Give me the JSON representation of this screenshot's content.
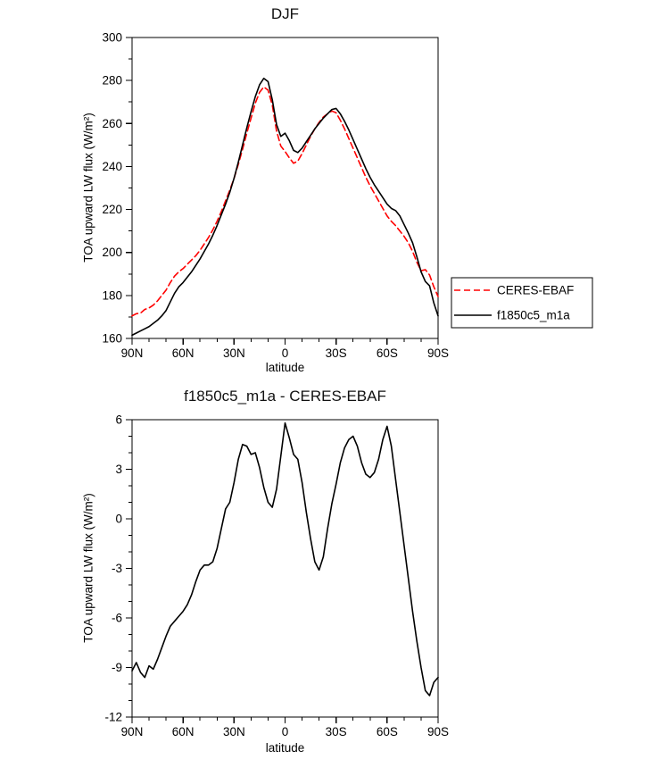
{
  "page": {
    "background": "#ffffff"
  },
  "colors": {
    "obs_line": "#ff0000",
    "model_line": "#000000",
    "axis": "#000000"
  },
  "chart_data": [
    {
      "type": "line",
      "title": "DJF",
      "xlabel": "latitude",
      "ylabel": "TOA upward LW flux (W/m²)",
      "xlim": [
        90,
        -90
      ],
      "ylim": [
        160,
        300
      ],
      "yticks": [
        160,
        180,
        200,
        220,
        240,
        260,
        280,
        300
      ],
      "ytick_minor_step": 10,
      "xticks": [
        90,
        60,
        30,
        0,
        -30,
        -60,
        -90
      ],
      "xtick_labels": [
        "90N",
        "60N",
        "30N",
        "0",
        "30S",
        "60S",
        "90S"
      ],
      "xtick_minor_step": 10,
      "grid": false,
      "legend": {
        "position": "outside-right",
        "border": true,
        "entries": [
          "CERES-EBAF",
          "f1850c5_m1a"
        ]
      },
      "x": [
        90,
        87.5,
        85,
        82.5,
        80,
        77.5,
        75,
        72.5,
        70,
        67.5,
        65,
        62.5,
        60,
        57.5,
        55,
        52.5,
        50,
        47.5,
        45,
        42.5,
        40,
        37.5,
        35,
        32.5,
        30,
        27.5,
        25,
        22.5,
        20,
        17.5,
        15,
        12.5,
        10,
        7.5,
        5,
        2.5,
        0,
        -2.5,
        -5,
        -7.5,
        -10,
        -12.5,
        -15,
        -17.5,
        -20,
        -22.5,
        -25,
        -27.5,
        -30,
        -32.5,
        -35,
        -37.5,
        -40,
        -42.5,
        -45,
        -47.5,
        -50,
        -52.5,
        -55,
        -57.5,
        -60,
        -62.5,
        -65,
        -67.5,
        -70,
        -72.5,
        -75,
        -77.5,
        -80,
        -82.5,
        -85,
        -87.5,
        -90
      ],
      "series": [
        {
          "name": "CERES-EBAF",
          "color": "#ff0000",
          "dash": "7,4",
          "width": 1.6,
          "values": [
            170.5,
            171.5,
            171.8,
            173.5,
            174.2,
            175.5,
            177.5,
            180,
            182.5,
            186,
            189,
            191,
            192.5,
            194.5,
            196.5,
            198.5,
            201,
            204,
            207,
            210.5,
            214.5,
            219,
            224,
            229,
            234.5,
            241,
            248,
            255.5,
            262.5,
            269.5,
            274.5,
            277,
            275.5,
            268.5,
            256.5,
            249.5,
            247,
            244,
            241.5,
            242.5,
            246,
            250,
            254,
            257.5,
            260.5,
            263,
            264.5,
            265.8,
            265,
            261.5,
            257.5,
            253,
            248.5,
            244,
            239.5,
            235,
            231,
            227.5,
            224,
            220.5,
            217,
            214.5,
            212.5,
            210,
            207.5,
            204.5,
            200.5,
            195.5,
            191.5,
            192,
            189.5,
            184,
            179.5
          ]
        },
        {
          "name": "f1850c5_m1a",
          "color": "#000000",
          "dash": "",
          "width": 1.6,
          "values": [
            161.5,
            162.5,
            163.5,
            164.5,
            165.5,
            167,
            168.5,
            170.5,
            173,
            177,
            181,
            184,
            186,
            188.5,
            191,
            194,
            197,
            200.5,
            204,
            208,
            212.5,
            217.5,
            222.5,
            228,
            234.5,
            242,
            250,
            258,
            265.5,
            272.5,
            278,
            281,
            279.5,
            271,
            259.5,
            254,
            255.5,
            252,
            247.5,
            246.5,
            248.5,
            251.5,
            254.5,
            257.5,
            260,
            262.5,
            264.5,
            266.5,
            267,
            264.5,
            261,
            257,
            252.5,
            248,
            243.5,
            239,
            235,
            231.5,
            228.5,
            225.5,
            222.5,
            220.5,
            219.5,
            217,
            213,
            209,
            204.5,
            198,
            191,
            186.5,
            184.5,
            176.5,
            170.5
          ]
        }
      ]
    },
    {
      "type": "line",
      "title": "f1850c5_m1a - CERES-EBAF",
      "xlabel": "latitude",
      "ylabel": "TOA upward LW flux (W/m²)",
      "xlim": [
        90,
        -90
      ],
      "ylim": [
        -12,
        6
      ],
      "yticks": [
        -12,
        -9,
        -6,
        -3,
        0,
        3,
        6
      ],
      "ytick_minor_step": 1,
      "xticks": [
        90,
        60,
        30,
        0,
        -30,
        -60,
        -90
      ],
      "xtick_labels": [
        "90N",
        "60N",
        "30N",
        "0",
        "30S",
        "60S",
        "90S"
      ],
      "xtick_minor_step": 10,
      "grid": false,
      "legend": null,
      "x": [
        90,
        87.5,
        85,
        82.5,
        80,
        77.5,
        75,
        72.5,
        70,
        67.5,
        65,
        62.5,
        60,
        57.5,
        55,
        52.5,
        50,
        47.5,
        45,
        42.5,
        40,
        37.5,
        35,
        32.5,
        30,
        27.5,
        25,
        22.5,
        20,
        17.5,
        15,
        12.5,
        10,
        7.5,
        5,
        2.5,
        0,
        -2.5,
        -5,
        -7.5,
        -10,
        -12.5,
        -15,
        -17.5,
        -20,
        -22.5,
        -25,
        -27.5,
        -30,
        -32.5,
        -35,
        -37.5,
        -40,
        -42.5,
        -45,
        -47.5,
        -50,
        -52.5,
        -55,
        -57.5,
        -60,
        -62.5,
        -65,
        -67.5,
        -70,
        -72.5,
        -75,
        -77.5,
        -80,
        -82.5,
        -85,
        -87.5,
        -90
      ],
      "series": [
        {
          "name": "f1850c5_m1a - CERES-EBAF",
          "color": "#000000",
          "dash": "",
          "width": 1.6,
          "values": [
            -9.2,
            -8.7,
            -9.3,
            -9.6,
            -8.9,
            -9.1,
            -8.5,
            -7.8,
            -7.1,
            -6.5,
            -6.2,
            -5.9,
            -5.6,
            -5.2,
            -4.6,
            -3.8,
            -3.1,
            -2.8,
            -2.8,
            -2.6,
            -1.8,
            -0.6,
            0.6,
            1.0,
            2.2,
            3.6,
            4.5,
            4.4,
            3.9,
            4.0,
            3.1,
            1.9,
            1.0,
            0.7,
            1.8,
            3.8,
            5.8,
            4.9,
            3.9,
            3.6,
            2.2,
            0.4,
            -1.2,
            -2.6,
            -3.1,
            -2.3,
            -0.6,
            0.9,
            2.1,
            3.4,
            4.3,
            4.8,
            5.0,
            4.4,
            3.4,
            2.7,
            2.5,
            2.8,
            3.6,
            4.8,
            5.6,
            4.4,
            2.4,
            0.4,
            -1.6,
            -3.6,
            -5.6,
            -7.4,
            -9.0,
            -10.4,
            -10.7,
            -9.9,
            -9.6
          ]
        }
      ]
    }
  ]
}
